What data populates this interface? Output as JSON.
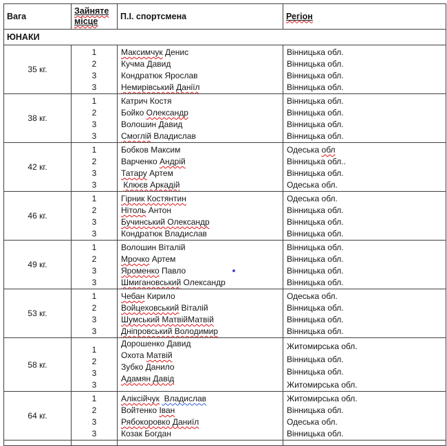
{
  "colors": {
    "spell_red": "#e01010",
    "spell_blue": "#2f5bd8",
    "dot_blue": "#4848d2",
    "border": "#3f3f3f",
    "text": "#141414"
  },
  "header": {
    "cells": [
      {
        "label": "Вага",
        "underline": false,
        "spell": null
      },
      {
        "label": "Зайняте місце",
        "underline": true,
        "spell": "red"
      },
      {
        "label": "П.І. спортсмена",
        "underline": false,
        "spell": null
      },
      {
        "label": "Регіон",
        "underline": true,
        "spell": "red"
      }
    ]
  },
  "section_title": "ЮНАКИ",
  "groups": [
    {
      "weight": "35 кг.",
      "offset": false,
      "rows": [
        {
          "place": "1",
          "name": [
            [
              "Максимчук",
              "red"
            ],
            [
              " Денис",
              null
            ]
          ],
          "region": [
            [
              "Вінницька обл.",
              null
            ]
          ]
        },
        {
          "place": "2",
          "name": [
            [
              "Кучма Давид",
              null
            ]
          ],
          "region": [
            [
              "Вінницька обл.",
              null
            ]
          ]
        },
        {
          "place": "3",
          "name": [
            [
              "Кондратюк Ярослав",
              null
            ]
          ],
          "region": [
            [
              "Вінницька обл.",
              null
            ]
          ]
        },
        {
          "place": "3",
          "name": [
            [
              "Немирівський Даніїл",
              "red"
            ]
          ],
          "region": [
            [
              "Вінницька обл.",
              null
            ]
          ]
        }
      ]
    },
    {
      "weight": "38 кг.",
      "offset": false,
      "rows": [
        {
          "place": "1",
          "name": [
            [
              "Катрич Костя",
              null
            ]
          ],
          "region": [
            [
              "Вінницька обл.",
              null
            ]
          ]
        },
        {
          "place": "2",
          "name": [
            [
              "Бойко ",
              null
            ],
            [
              "Олександр",
              "red"
            ]
          ],
          "region": [
            [
              "Вінницька обл.",
              null
            ]
          ]
        },
        {
          "place": "3",
          "name": [
            [
              "Волошин Давид",
              null
            ]
          ],
          "region": [
            [
              "Вінницька обл.",
              null
            ]
          ]
        },
        {
          "place": "3",
          "name": [
            [
              "Смоглій",
              "red"
            ],
            [
              " Владислав",
              null
            ]
          ],
          "region": [
            [
              "Вінницька обл.",
              null
            ]
          ]
        }
      ]
    },
    {
      "weight": "42 кг.",
      "offset": false,
      "rows": [
        {
          "place": "1",
          "name": [
            [
              "Бобков Максим",
              null
            ]
          ],
          "region": [
            [
              "Одеська ",
              null
            ],
            [
              "обл",
              "red"
            ]
          ]
        },
        {
          "place": "2",
          "name": [
            [
              "Варченко ",
              null
            ],
            [
              "Андрій",
              "red"
            ]
          ],
          "region": [
            [
              "Вінницька обл..",
              null
            ]
          ]
        },
        {
          "place": "3",
          "name": [
            [
              "Татару",
              "red"
            ],
            [
              " Артем",
              null
            ]
          ],
          "region": [
            [
              "Вінницька обл.",
              null
            ]
          ]
        },
        {
          "place": "3",
          "name": [
            [
              " ",
              null
            ],
            [
              "Клюєв Аркадій",
              "red"
            ]
          ],
          "region": [
            [
              "Одеська обл.",
              null
            ]
          ]
        }
      ]
    },
    {
      "weight": "46 кг.",
      "offset": false,
      "rows": [
        {
          "place": "1",
          "name": [
            [
              "Гірник Костянтин",
              "red"
            ]
          ],
          "region": [
            [
              "Одеська обл.",
              null
            ]
          ]
        },
        {
          "place": "2",
          "name": [
            [
              "Нітоль",
              "red"
            ],
            [
              " Антон",
              null
            ]
          ],
          "region": [
            [
              "Вінницька обл.",
              null
            ]
          ]
        },
        {
          "place": "3",
          "name": [
            [
              "Бучинський Олександр",
              "red"
            ]
          ],
          "region": [
            [
              "Вінницька обл.",
              null
            ]
          ]
        },
        {
          "place": "3",
          "name": [
            [
              "Кондратюк Владислав",
              null
            ]
          ],
          "region": [
            [
              "Вінницька обл.",
              null
            ]
          ]
        }
      ]
    },
    {
      "weight": "49 кг.",
      "offset": false,
      "rows": [
        {
          "place": "1",
          "name": [
            [
              "Волошин Віталій",
              null
            ]
          ],
          "region": [
            [
              "Вінницька обл.",
              null
            ]
          ]
        },
        {
          "place": "2",
          "name": [
            [
              "Мрочко",
              "red"
            ],
            [
              " Артем",
              null
            ]
          ],
          "region": [
            [
              "Вінницька обл.",
              null
            ]
          ]
        },
        {
          "place": "3",
          "name": [
            [
              "Яроменко",
              "red"
            ],
            [
              " Павло",
              null
            ]
          ],
          "dot": true,
          "region": [
            [
              "Вінницька обл.",
              null
            ]
          ]
        },
        {
          "place": "3",
          "name": [
            [
              "Шмигановський",
              "red"
            ],
            [
              " Олександр",
              null
            ]
          ],
          "region": [
            [
              "Вінницька обл.",
              null
            ]
          ]
        }
      ]
    },
    {
      "weight": "53 кг.",
      "offset": false,
      "rows": [
        {
          "place": "1",
          "name": [
            [
              "Чебан",
              "red"
            ],
            [
              " Кирило",
              null
            ]
          ],
          "region": [
            [
              "Одеська обл.",
              null
            ]
          ]
        },
        {
          "place": "2",
          "name": [
            [
              "Войцеховський",
              "red"
            ],
            [
              " Віталій",
              null
            ]
          ],
          "region": [
            [
              "Вінницька обл.",
              null
            ]
          ]
        },
        {
          "place": "3",
          "name": [
            [
              "Шумський МатвійМатвій",
              "red"
            ]
          ],
          "region": [
            [
              "Вінницька обл.",
              null
            ]
          ]
        },
        {
          "place": "3",
          "name": [
            [
              "Дніпровський Володимир",
              "red"
            ]
          ],
          "region": [
            [
              "Вінницька обл.",
              null
            ]
          ]
        }
      ]
    },
    {
      "weight": "58 кг.",
      "offset": true,
      "rows": [
        {
          "place": "1",
          "name": [
            [
              "Дорошенко Давид",
              null
            ]
          ],
          "region": [
            [
              "Житомирська обл.",
              null
            ]
          ]
        },
        {
          "place": "2",
          "name": [
            [
              "Охота ",
              null
            ],
            [
              "Матвій",
              "red"
            ]
          ],
          "region": [
            [
              "Вінницька обл.",
              null
            ]
          ]
        },
        {
          "place": "3",
          "name": [
            [
              "Зубко Данило",
              null
            ]
          ],
          "region": [
            [
              "Вінницька обл.",
              null
            ]
          ]
        },
        {
          "place": "3",
          "name": [
            [
              "Адамян Давід",
              "red"
            ]
          ],
          "region": [
            [
              "Житомирська обл.",
              null
            ]
          ]
        }
      ]
    },
    {
      "weight": "64 кг.",
      "offset": false,
      "rows": [
        {
          "place": "1",
          "name": [
            [
              "Аліксійчук",
              "red"
            ],
            [
              " ",
              null
            ],
            [
              " Владислав",
              "blue"
            ]
          ],
          "region": [
            [
              "Житомирська обл.",
              null
            ]
          ]
        },
        {
          "place": "2",
          "name": [
            [
              "Войтенко ",
              null
            ],
            [
              "Іван",
              "red"
            ]
          ],
          "region": [
            [
              "Вінницька обл.",
              null
            ]
          ]
        },
        {
          "place": "3",
          "name": [
            [
              "Рябокоровко Даниїл",
              "red"
            ]
          ],
          "region": [
            [
              "Одеська обл.",
              null
            ]
          ]
        },
        {
          "place": "3",
          "name": [
            [
              "Козак Богдан",
              null
            ]
          ],
          "region": [
            [
              "Вінницька обл.",
              null
            ]
          ]
        }
      ]
    }
  ]
}
